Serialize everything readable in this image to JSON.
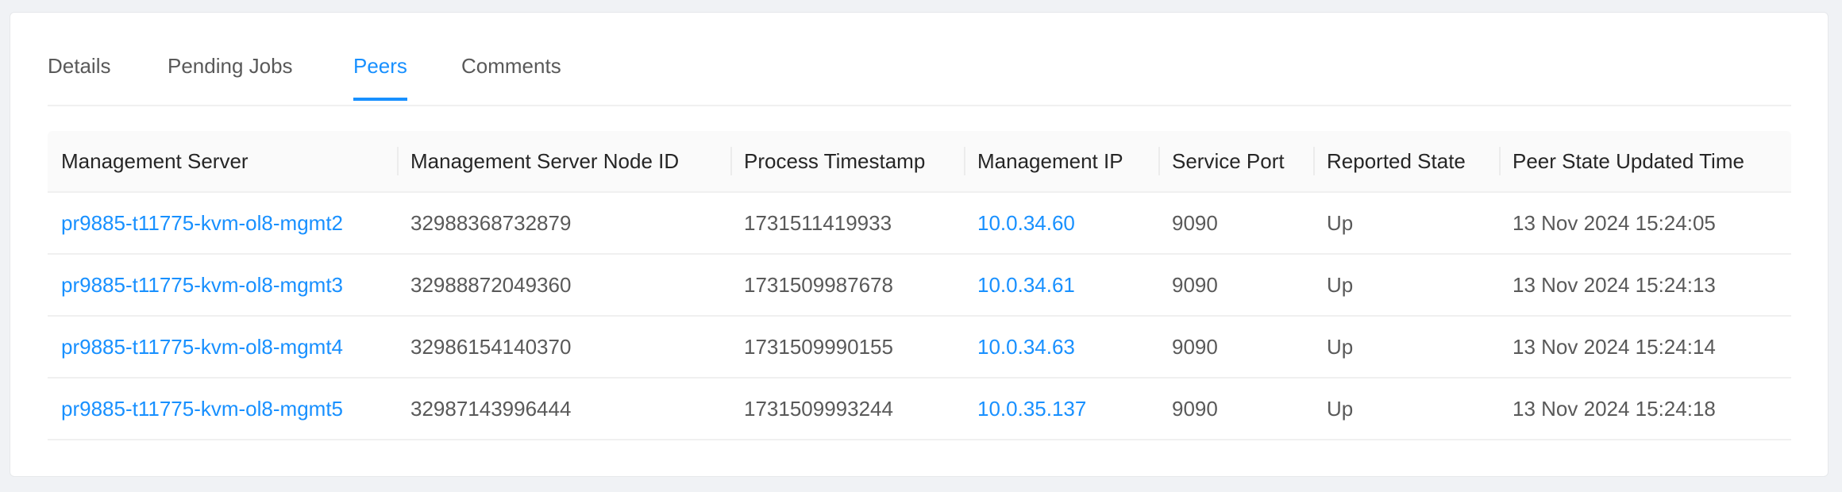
{
  "tabs": [
    {
      "label": "Details"
    },
    {
      "label": "Pending Jobs"
    },
    {
      "label": "Peers",
      "active": true
    },
    {
      "label": "Comments"
    }
  ],
  "table": {
    "columns": [
      "Management Server",
      "Management Server Node ID",
      "Process Timestamp",
      "Management IP",
      "Service Port",
      "Reported State",
      "Peer State Updated Time"
    ],
    "rows": [
      [
        "pr9885-t11775-kvm-ol8-mgmt2",
        "32988368732879",
        "1731511419933",
        "10.0.34.60",
        "9090",
        "Up",
        "13 Nov 2024 15:24:05"
      ],
      [
        "pr9885-t11775-kvm-ol8-mgmt3",
        "32988872049360",
        "1731509987678",
        "10.0.34.61",
        "9090",
        "Up",
        "13 Nov 2024 15:24:13"
      ],
      [
        "pr9885-t11775-kvm-ol8-mgmt4",
        "32986154140370",
        "1731509990155",
        "10.0.34.63",
        "9090",
        "Up",
        "13 Nov 2024 15:24:14"
      ],
      [
        "pr9885-t11775-kvm-ol8-mgmt5",
        "32987143996444",
        "1731509993244",
        "10.0.35.137",
        "9090",
        "Up",
        "13 Nov 2024 15:24:18"
      ]
    ]
  },
  "colors": {
    "accent": "#1890ff",
    "background": "#f0f2f5"
  }
}
